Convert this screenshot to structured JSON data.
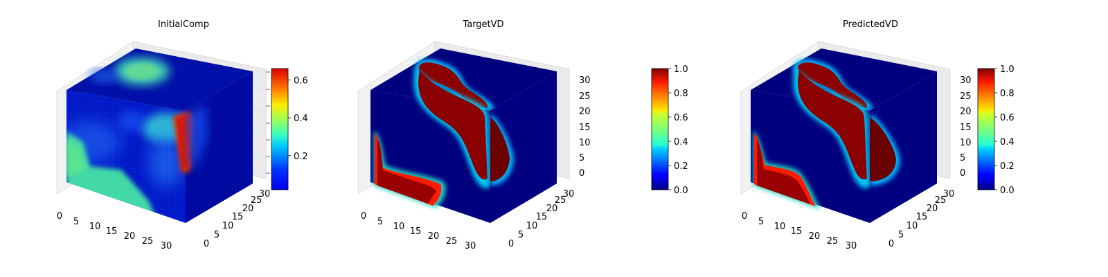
{
  "chart_data": [
    {
      "type": "heatmap",
      "title": "InitialComp",
      "x_ticks": [
        "0",
        "5",
        "10",
        "15",
        "20",
        "25",
        "30"
      ],
      "y_ticks": [
        "0",
        "5",
        "10",
        "15",
        "20",
        "25",
        "30"
      ],
      "z_ticks": [],
      "xlim": [
        0,
        32
      ],
      "ylim": [
        0,
        32
      ],
      "zlim": [
        0,
        32
      ],
      "colormap": "jet",
      "colorbar_range": [
        0.02,
        0.66
      ],
      "colorbar_ticks": [
        "0.2",
        "0.4",
        "0.6"
      ],
      "colorbar_tick_values": [
        0.2,
        0.4,
        0.6
      ]
    },
    {
      "type": "heatmap",
      "title": "TargetVD",
      "x_ticks": [
        "0",
        "5",
        "10",
        "15",
        "20",
        "25",
        "30"
      ],
      "y_ticks": [
        "0",
        "5",
        "10",
        "15",
        "20",
        "25",
        "30"
      ],
      "z_ticks": [
        "0",
        "5",
        "10",
        "15",
        "20",
        "25",
        "30"
      ],
      "xlim": [
        0,
        32
      ],
      "ylim": [
        0,
        32
      ],
      "zlim": [
        0,
        32
      ],
      "colormap": "jet",
      "colorbar_range": [
        0.0,
        1.0
      ],
      "colorbar_ticks": [
        "0.0",
        "0.2",
        "0.4",
        "0.6",
        "0.8",
        "1.0"
      ],
      "colorbar_tick_values": [
        0.0,
        0.2,
        0.4,
        0.6,
        0.8,
        1.0
      ]
    },
    {
      "type": "heatmap",
      "title": "PredictedVD",
      "x_ticks": [
        "0",
        "5",
        "10",
        "15",
        "20",
        "25",
        "30"
      ],
      "y_ticks": [
        "0",
        "5",
        "10",
        "15",
        "20",
        "25",
        "30"
      ],
      "z_ticks": [
        "0",
        "5",
        "10",
        "15",
        "20",
        "25",
        "30"
      ],
      "xlim": [
        0,
        32
      ],
      "ylim": [
        0,
        32
      ],
      "zlim": [
        0,
        32
      ],
      "colormap": "jet",
      "colorbar_range": [
        0.0,
        1.0
      ],
      "colorbar_ticks": [
        "0.0",
        "0.2",
        "0.4",
        "0.6",
        "0.8",
        "1.0"
      ],
      "colorbar_tick_values": [
        0.0,
        0.2,
        0.4,
        0.6,
        0.8,
        1.0
      ]
    }
  ]
}
